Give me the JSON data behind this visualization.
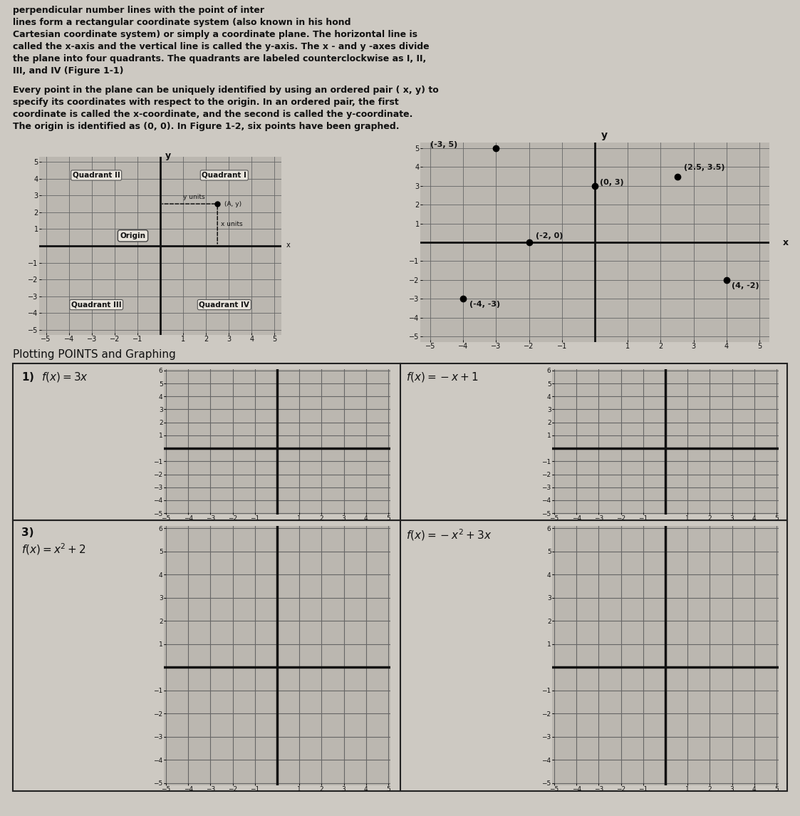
{
  "bg_color": "#cdc9c2",
  "text_color": "#111111",
  "grid_color": "#666666",
  "axis_color": "#111111",
  "plot_bg": "#bbb7b0",
  "white_bg": "#e8e4dc",
  "para1_lines": [
    "perpendicular number lines with the point of inter",
    "lines form a rectangular coordinate system (also known in his hond",
    "Cartesian coordinate system) or simply a coordinate plane. The horizontal line is",
    "called the x-axis and the vertical line is called the y-axis. The x - and y -axes divide",
    "the plane into four quadrants. The quadrants are labeled counterclockwise as I, II,",
    "III, and IV (Figure 1-1)"
  ],
  "para2_lines": [
    "Every point in the plane can be uniquely identified by using an ordered pair ( x, y) to",
    "specify its coordinates with respect to the origin. In an ordered pair, the first",
    "coordinate is called the x-coordinate, and the second is called the y-coordinate.",
    "The origin is identified as (0, 0). In Figure 1-2, six points have been graphed."
  ],
  "fig2_points": [
    [
      -3,
      5
    ],
    [
      2.5,
      3.5
    ],
    [
      0,
      3
    ],
    [
      -2,
      0
    ],
    [
      4,
      -2
    ],
    [
      -4,
      -3
    ]
  ],
  "fig2_labels": [
    "(-3, 5)",
    "(2.5, 3.5)",
    "(0, 3)",
    "(-2, 0)",
    "(4, -2)",
    "(-4, -3)"
  ],
  "section_title": "Plotting POINTS and Graphing",
  "func1": "1)  $f(x)=3x$",
  "func2": "$f(x)=-x+1$",
  "func3_a": "3)",
  "func3_b": "$f(x)=x^2+2$",
  "func4": "$f(x)=-x^2+3x$"
}
